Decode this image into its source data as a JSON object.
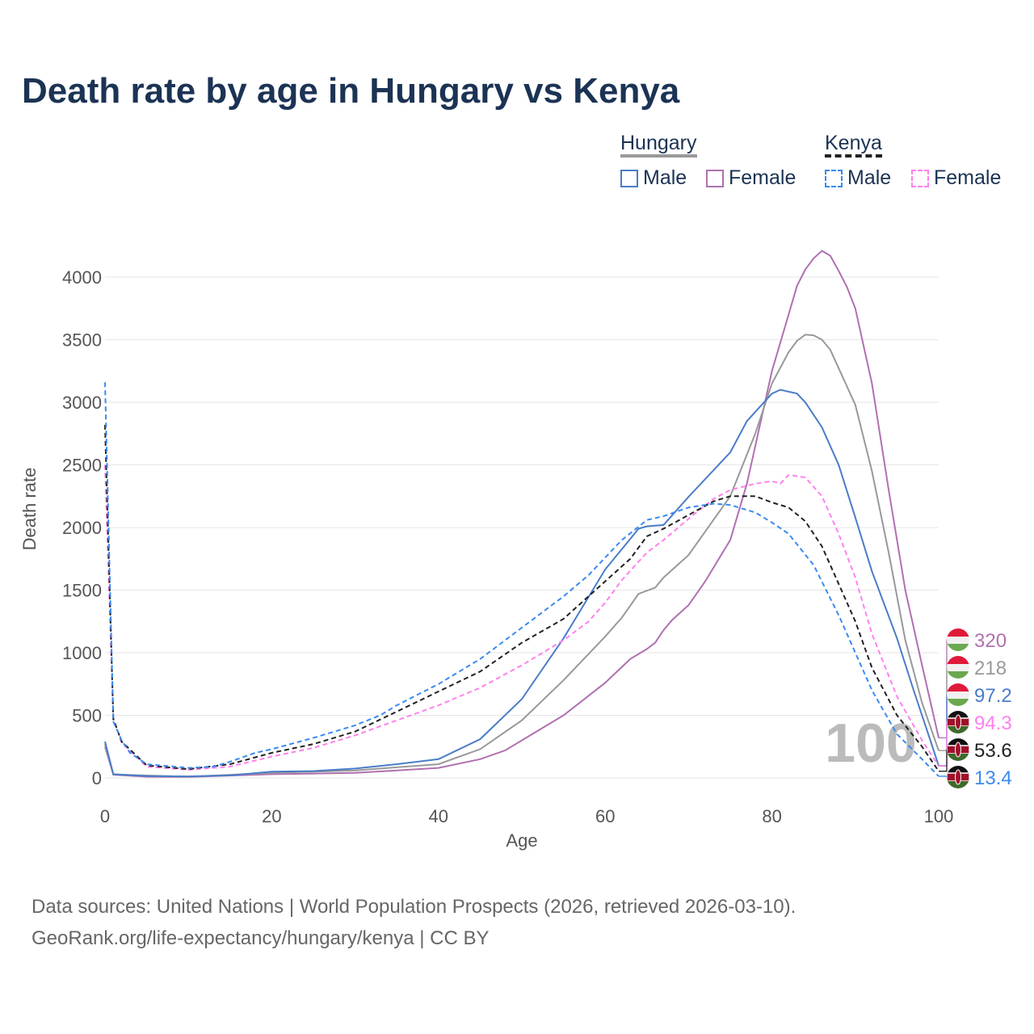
{
  "title": "Death rate by age in Hungary vs Kenya",
  "legend": {
    "groups": [
      {
        "label": "Hungary",
        "color": "#999999",
        "style": "solid"
      },
      {
        "label": "Kenya",
        "color": "#222222",
        "style": "dashed"
      }
    ],
    "items": [
      {
        "label": "Male",
        "color": "#4a7cc9",
        "style": "solid"
      },
      {
        "label": "Female",
        "color": "#b070b0",
        "style": "solid"
      },
      {
        "label": "Male",
        "color": "#3a8af0",
        "style": "dashed"
      },
      {
        "label": "Female",
        "color": "#ff80ee",
        "style": "dashed"
      }
    ]
  },
  "watermark": "100",
  "sources": [
    "Data sources: United Nations | World Population Prospects (2026, retrieved 2026-03-10).",
    "GeoRank.org/life-expectancy/hungary/kenya | CC BY"
  ],
  "chart_data": {
    "type": "line",
    "title": "Death rate by age in Hungary vs Kenya",
    "xlabel": "Age",
    "ylabel": "Death rate",
    "xlim": [
      0,
      100
    ],
    "ylim": [
      0,
      4000
    ],
    "xticks": [
      "0",
      "20",
      "40",
      "60",
      "80",
      "100"
    ],
    "yticks": [
      "0",
      "500",
      "1000",
      "1500",
      "2000",
      "2500",
      "3000",
      "3500",
      "4000"
    ],
    "series": [
      {
        "name": "Hungary Female",
        "color": "#b070b0",
        "dash": false,
        "flag": "hungary",
        "end_label": "320",
        "x": [
          0,
          1,
          5,
          10,
          20,
          30,
          35,
          40,
          45,
          48,
          50,
          55,
          60,
          63,
          65,
          66,
          67,
          68,
          70,
          72,
          75,
          77,
          80,
          82,
          83,
          84,
          85,
          86,
          87,
          88,
          89,
          90,
          92,
          94,
          96,
          98,
          100
        ],
        "y": [
          250,
          25,
          10,
          8,
          30,
          40,
          60,
          80,
          150,
          220,
          300,
          500,
          760,
          950,
          1030,
          1080,
          1180,
          1260,
          1380,
          1570,
          1900,
          2350,
          3250,
          3700,
          3930,
          4060,
          4150,
          4210,
          4170,
          4050,
          3920,
          3750,
          3150,
          2300,
          1500,
          900,
          320
        ]
      },
      {
        "name": "Hungary Total",
        "color": "#999999",
        "dash": false,
        "flag": "hungary",
        "end_label": "218",
        "x": [
          0,
          1,
          10,
          20,
          30,
          40,
          45,
          50,
          55,
          60,
          62,
          64,
          66,
          67,
          70,
          75,
          78,
          80,
          82,
          83,
          84,
          85,
          86,
          87,
          90,
          92,
          94,
          96,
          98,
          100
        ],
        "y": [
          270,
          28,
          10,
          40,
          60,
          110,
          230,
          460,
          780,
          1130,
          1280,
          1470,
          1520,
          1600,
          1780,
          2250,
          2750,
          3150,
          3400,
          3490,
          3540,
          3535,
          3500,
          3420,
          2980,
          2450,
          1800,
          1100,
          600,
          218
        ]
      },
      {
        "name": "Hungary Male",
        "color": "#4a7cc9",
        "dash": false,
        "flag": "hungary",
        "end_label": "97.2",
        "x": [
          0,
          1,
          5,
          10,
          15,
          20,
          25,
          30,
          35,
          40,
          45,
          50,
          55,
          60,
          64,
          65,
          67,
          70,
          75,
          77,
          80,
          81,
          83,
          84,
          86,
          88,
          90,
          92,
          95,
          97,
          99,
          100
        ],
        "y": [
          290,
          30,
          15,
          12,
          20,
          50,
          55,
          75,
          110,
          150,
          310,
          630,
          1115,
          1665,
          1990,
          2010,
          2020,
          2245,
          2600,
          2850,
          3070,
          3100,
          3070,
          3000,
          2800,
          2500,
          2080,
          1650,
          1115,
          700,
          300,
          97.2
        ]
      },
      {
        "name": "Kenya Female",
        "color": "#ff80ee",
        "dash": true,
        "flag": "kenya",
        "end_label": "94.3",
        "x": [
          0,
          1,
          2,
          5,
          10,
          15,
          20,
          25,
          30,
          35,
          40,
          45,
          50,
          55,
          58,
          60,
          62,
          65,
          67,
          70,
          73,
          75,
          78,
          80,
          81,
          82,
          84,
          86,
          88,
          90,
          92,
          95,
          98,
          100
        ],
        "y": [
          2500,
          470,
          280,
          90,
          65,
          90,
          170,
          240,
          340,
          460,
          580,
          720,
          900,
          1100,
          1250,
          1400,
          1580,
          1800,
          1900,
          2070,
          2230,
          2300,
          2350,
          2370,
          2350,
          2420,
          2400,
          2250,
          1950,
          1600,
          1150,
          650,
          300,
          94.3
        ]
      },
      {
        "name": "Kenya Total",
        "color": "#222222",
        "dash": true,
        "flag": "kenya",
        "end_label": "53.6",
        "x": [
          0,
          1,
          2,
          5,
          10,
          15,
          20,
          25,
          30,
          35,
          40,
          45,
          50,
          55,
          60,
          63,
          65,
          67,
          70,
          73,
          75,
          78,
          80,
          82,
          84,
          86,
          88,
          90,
          92,
          95,
          98,
          100
        ],
        "y": [
          2820,
          470,
          290,
          100,
          70,
          110,
          200,
          270,
          370,
          530,
          690,
          850,
          1080,
          1270,
          1570,
          1750,
          1930,
          1990,
          2100,
          2210,
          2250,
          2250,
          2200,
          2160,
          2050,
          1850,
          1550,
          1250,
          880,
          500,
          250,
          53.6
        ]
      },
      {
        "name": "Kenya Male",
        "color": "#3a8af0",
        "dash": true,
        "flag": "kenya",
        "end_label": "13.4",
        "x": [
          0,
          1,
          2,
          3,
          5,
          10,
          13,
          15,
          18,
          20,
          25,
          30,
          33,
          35,
          40,
          45,
          50,
          55,
          58,
          60,
          62,
          65,
          67,
          70,
          73,
          75,
          78,
          80,
          82,
          85,
          88,
          90,
          92,
          95,
          98,
          100
        ],
        "y": [
          3160,
          450,
          300,
          200,
          110,
          80,
          90,
          130,
          200,
          230,
          320,
          420,
          500,
          580,
          750,
          950,
          1200,
          1450,
          1620,
          1760,
          1900,
          2060,
          2090,
          2160,
          2190,
          2180,
          2120,
          2040,
          1950,
          1700,
          1300,
          1000,
          700,
          350,
          150,
          13.4
        ]
      }
    ]
  }
}
